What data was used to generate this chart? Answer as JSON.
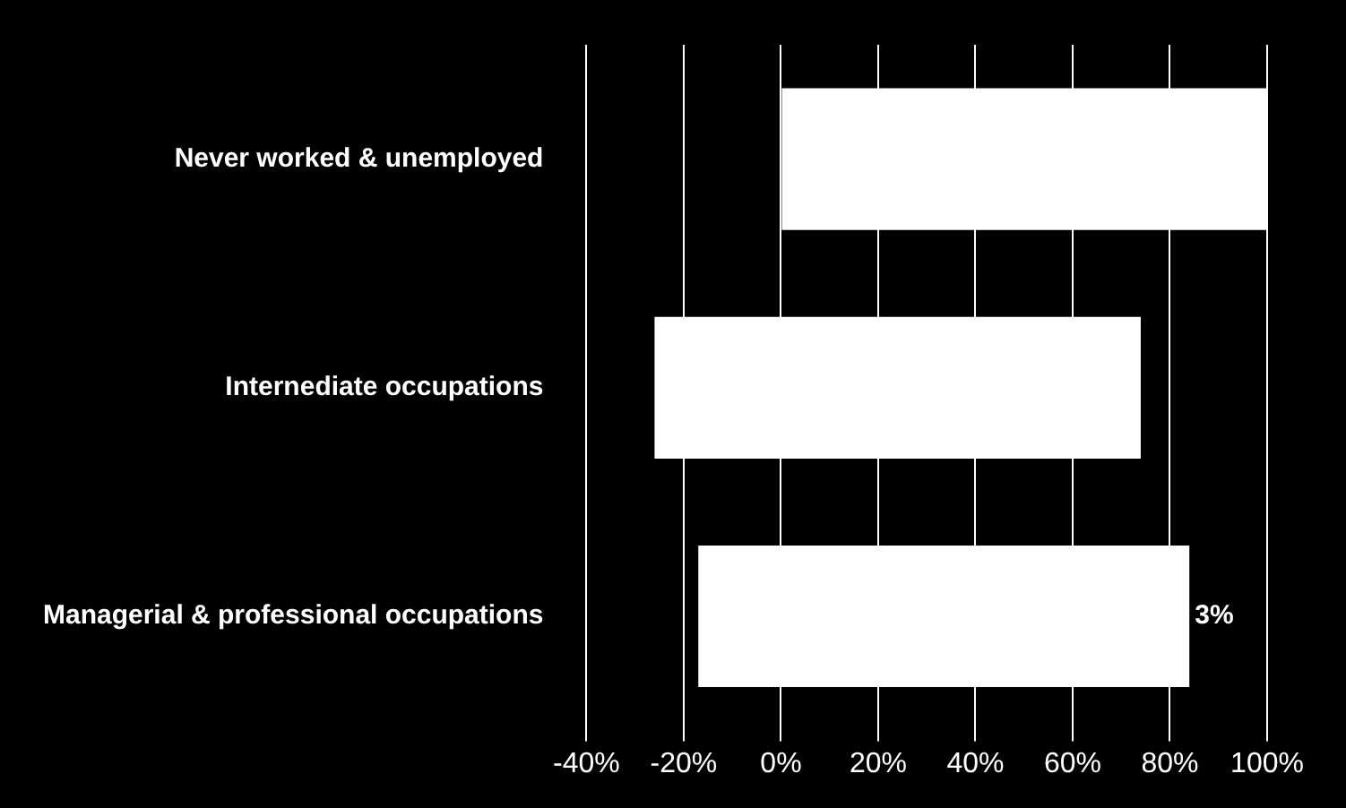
{
  "chart_data": {
    "type": "bar",
    "orientation": "horizontal",
    "categories": [
      "Never worked & unemployed",
      "Internediate occupations",
      "Managerial & professional occupations"
    ],
    "base": [
      0,
      -26,
      -17
    ],
    "values": [
      100,
      100,
      101
    ],
    "color": "#ffffff",
    "xlim": [
      -40,
      100
    ],
    "xticks": [
      {
        "value": -40,
        "label": "-40%"
      },
      {
        "value": -20,
        "label": "-20%"
      },
      {
        "value": 0,
        "label": "0%"
      },
      {
        "value": 20,
        "label": "20%"
      },
      {
        "value": 40,
        "label": "40%"
      },
      {
        "value": 60,
        "label": "60%"
      },
      {
        "value": 80,
        "label": "80%"
      },
      {
        "value": 100,
        "label": "100%"
      }
    ],
    "grid": "x",
    "legend": false,
    "annotations": [
      {
        "text": "3%",
        "x": 84,
        "y": "Managerial & professional occupations"
      }
    ]
  }
}
